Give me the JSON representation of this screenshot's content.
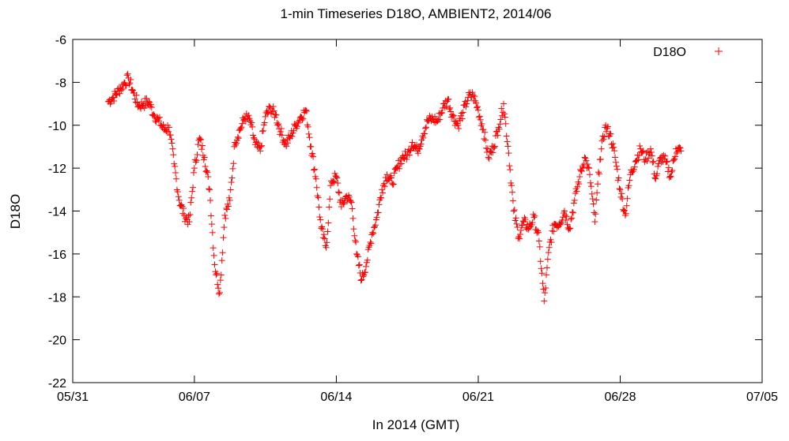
{
  "chart_data": {
    "type": "scatter",
    "title": "1-min Timeseries D18O, AMBIENT2, 2014/06",
    "xlabel": "In 2014 (GMT)",
    "ylabel": "D18O",
    "x_ticks": [
      "05/31",
      "06/07",
      "06/14",
      "06/21",
      "06/28",
      "07/05"
    ],
    "xlim_days_labels": [
      "05/31",
      "07/05"
    ],
    "y_ticks": [
      "-6",
      "-8",
      "-10",
      "-12",
      "-14",
      "-16",
      "-18",
      "-20",
      "-22"
    ],
    "ylim": [
      -22,
      -6
    ],
    "grid": false,
    "legend_position": "top-right",
    "marker": "plus",
    "color": "#ff0000",
    "series": [
      {
        "name": "D18O",
        "color": "#ff0000",
        "x": [
          "06/02 18:00",
          "06/03 00:00",
          "06/03 06:00",
          "06/03 12:00",
          "06/03 18:00",
          "06/04 00:00",
          "06/04 06:00",
          "06/04 12:00",
          "06/04 18:00",
          "06/05 00:00",
          "06/05 06:00",
          "06/05 12:00",
          "06/05 18:00",
          "06/06 00:00",
          "06/06 06:00",
          "06/06 12:00",
          "06/06 18:00",
          "06/07 00:00",
          "06/07 06:00",
          "06/07 12:00",
          "06/07 18:00",
          "06/08 00:00",
          "06/08 06:00",
          "06/08 12:00",
          "06/08 18:00",
          "06/09 00:00",
          "06/09 06:00",
          "06/09 12:00",
          "06/09 18:00",
          "06/10 00:00",
          "06/10 06:00",
          "06/10 12:00",
          "06/10 18:00",
          "06/11 00:00",
          "06/11 06:00",
          "06/11 12:00",
          "06/11 18:00",
          "06/12 00:00",
          "06/12 06:00",
          "06/12 12:00",
          "06/12 18:00",
          "06/13 00:00",
          "06/13 06:00",
          "06/13 12:00",
          "06/13 18:00",
          "06/14 00:00",
          "06/14 06:00",
          "06/14 12:00",
          "06/14 18:00",
          "06/15 00:00",
          "06/15 06:00",
          "06/15 12:00",
          "06/15 18:00",
          "06/16 00:00",
          "06/16 06:00",
          "06/16 12:00",
          "06/16 18:00",
          "06/17 00:00",
          "06/17 06:00",
          "06/17 12:00",
          "06/17 18:00",
          "06/18 00:00",
          "06/18 06:00",
          "06/18 12:00",
          "06/18 18:00",
          "06/19 00:00",
          "06/19 06:00",
          "06/19 12:00",
          "06/19 18:00",
          "06/20 00:00",
          "06/20 06:00",
          "06/20 12:00",
          "06/20 18:00",
          "06/21 00:00",
          "06/21 06:00",
          "06/21 12:00",
          "06/21 18:00",
          "06/22 00:00",
          "06/22 06:00",
          "06/22 12:00",
          "06/22 18:00",
          "06/23 00:00",
          "06/23 06:00",
          "06/23 12:00",
          "06/23 18:00",
          "06/24 00:00",
          "06/24 06:00",
          "06/24 12:00",
          "06/24 18:00",
          "06/25 00:00",
          "06/25 06:00",
          "06/25 12:00",
          "06/25 18:00",
          "06/26 00:00",
          "06/26 06:00",
          "06/26 12:00",
          "06/26 18:00",
          "06/27 00:00",
          "06/27 06:00",
          "06/27 12:00",
          "06/27 18:00",
          "06/28 00:00",
          "06/28 06:00",
          "06/28 12:00",
          "06/28 18:00",
          "06/29 00:00",
          "06/29 06:00",
          "06/29 12:00",
          "06/29 18:00",
          "06/30 00:00",
          "06/30 06:00",
          "06/30 12:00",
          "06/30 18:00",
          "07/01 00:00"
        ],
        "y": [
          -8.9,
          -8.7,
          -8.4,
          -8.1,
          -7.8,
          -8.5,
          -9.1,
          -9.0,
          -8.9,
          -9.5,
          -9.8,
          -10.2,
          -10.1,
          -11.8,
          -13.5,
          -14.2,
          -14.5,
          -12.0,
          -10.6,
          -11.5,
          -13.0,
          -16.5,
          -17.8,
          -14.2,
          -13.5,
          -10.8,
          -10.2,
          -9.6,
          -9.8,
          -10.9,
          -11.2,
          -9.6,
          -9.2,
          -9.5,
          -10.3,
          -10.9,
          -10.5,
          -10.0,
          -9.6,
          -9.3,
          -11.0,
          -12.5,
          -14.8,
          -15.7,
          -12.6,
          -12.4,
          -13.8,
          -13.3,
          -13.6,
          -16.0,
          -17.2,
          -16.4,
          -15.1,
          -14.3,
          -13.0,
          -12.3,
          -12.7,
          -12.0,
          -11.5,
          -11.4,
          -10.8,
          -11.2,
          -10.5,
          -9.8,
          -9.7,
          -9.8,
          -9.2,
          -8.8,
          -9.6,
          -10.0,
          -9.4,
          -8.7,
          -8.6,
          -9.3,
          -10.2,
          -11.5,
          -11.0,
          -10.1,
          -9.0,
          -11.3,
          -14.0,
          -15.2,
          -14.5,
          -14.8,
          -14.3,
          -15.4,
          -18.2,
          -15.7,
          -14.6,
          -14.6,
          -14.0,
          -14.8,
          -13.5,
          -12.4,
          -11.5,
          -12.3,
          -14.5,
          -11.6,
          -10.1,
          -10.4,
          -11.5,
          -13.0,
          -14.2,
          -12.3,
          -11.7,
          -11.1,
          -11.6,
          -11.1,
          -12.5,
          -11.5,
          -11.7,
          -12.4,
          -11.1,
          -11.2
        ]
      }
    ]
  }
}
